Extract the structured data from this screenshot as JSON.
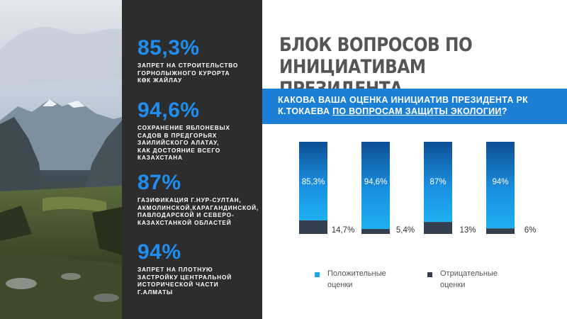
{
  "colors": {
    "positive": "#1ea6ec",
    "negative": "#333f4e",
    "accent": "#1f8ef1",
    "panel": "#2d2d2d"
  },
  "stats": [
    {
      "value": "85,3%",
      "desc": "ЗАПРЕТ НА СТРОИТЕЛЬСТВО\nГОРНОЛЫЖНОГО КУРОРТА\nКӨК ЖАЙЛАУ"
    },
    {
      "value": "94,6%",
      "desc": "СОХРАНЕНИЕ ЯБЛОНЕВЫХ\nСАДОВ В ПРЕДГОРЬЯХ\nЗАИЛИЙСКОГО АЛАТАУ,\nКАК ДОСТОЯНИЕ ВСЕГО\nКАЗАХСТАНА"
    },
    {
      "value": "87%",
      "desc": "ГАЗИФИКАЦИЯ Г.НУР-СУЛТАН,\nАКМОЛИНСКОЙ,КАРАГАНДИНСКОЙ,\nПАВЛОДАРСКОЙ И СЕВЕРО-\nКАЗАХСТАНКОЙ ОБЛАСТЕЙ"
    },
    {
      "value": "94%",
      "desc": "ЗАПРЕТ НА ПЛОТНУЮ\nЗАСТРОЙКУ ЦЕНТРАЛЬНОЙ\nИСТОРИЧЕСКОЙ ЧАСТИ\nГ.АЛМАТЫ"
    }
  ],
  "title": "БЛОК ВОПРОСОВ ПО ИНИЦИАТИВАМ ПРЕЗИДЕНТА",
  "question": {
    "part1": "КАКОВА ВАША ОЦЕНКА ИНИЦИАТИВ ПРЕЗИДЕНТА РК К.ТОКАЕВА ",
    "underlined": "ПО ВОПРОСАМ ЗАЩИТЫ ЭКОЛОГИИ",
    "end": "?"
  },
  "chart_data": {
    "type": "bar",
    "stacked": true,
    "categories": [
      "",
      "",
      "",
      ""
    ],
    "series": [
      {
        "name": "Положительные оценки",
        "values": [
          85.3,
          94.6,
          87,
          94
        ],
        "labels": [
          "85,3%",
          "94,6%",
          "87%",
          "94%"
        ]
      },
      {
        "name": "Отрицательные оценки",
        "values": [
          14.7,
          5.4,
          13,
          6
        ],
        "labels": [
          "14,7%",
          "5,4%",
          "13%",
          "6%"
        ]
      }
    ],
    "ylim": [
      0,
      100
    ],
    "legend": "bottom"
  },
  "legend": {
    "positive": "Положительные\nоценки",
    "negative": "Отрицательные\nоценки"
  }
}
